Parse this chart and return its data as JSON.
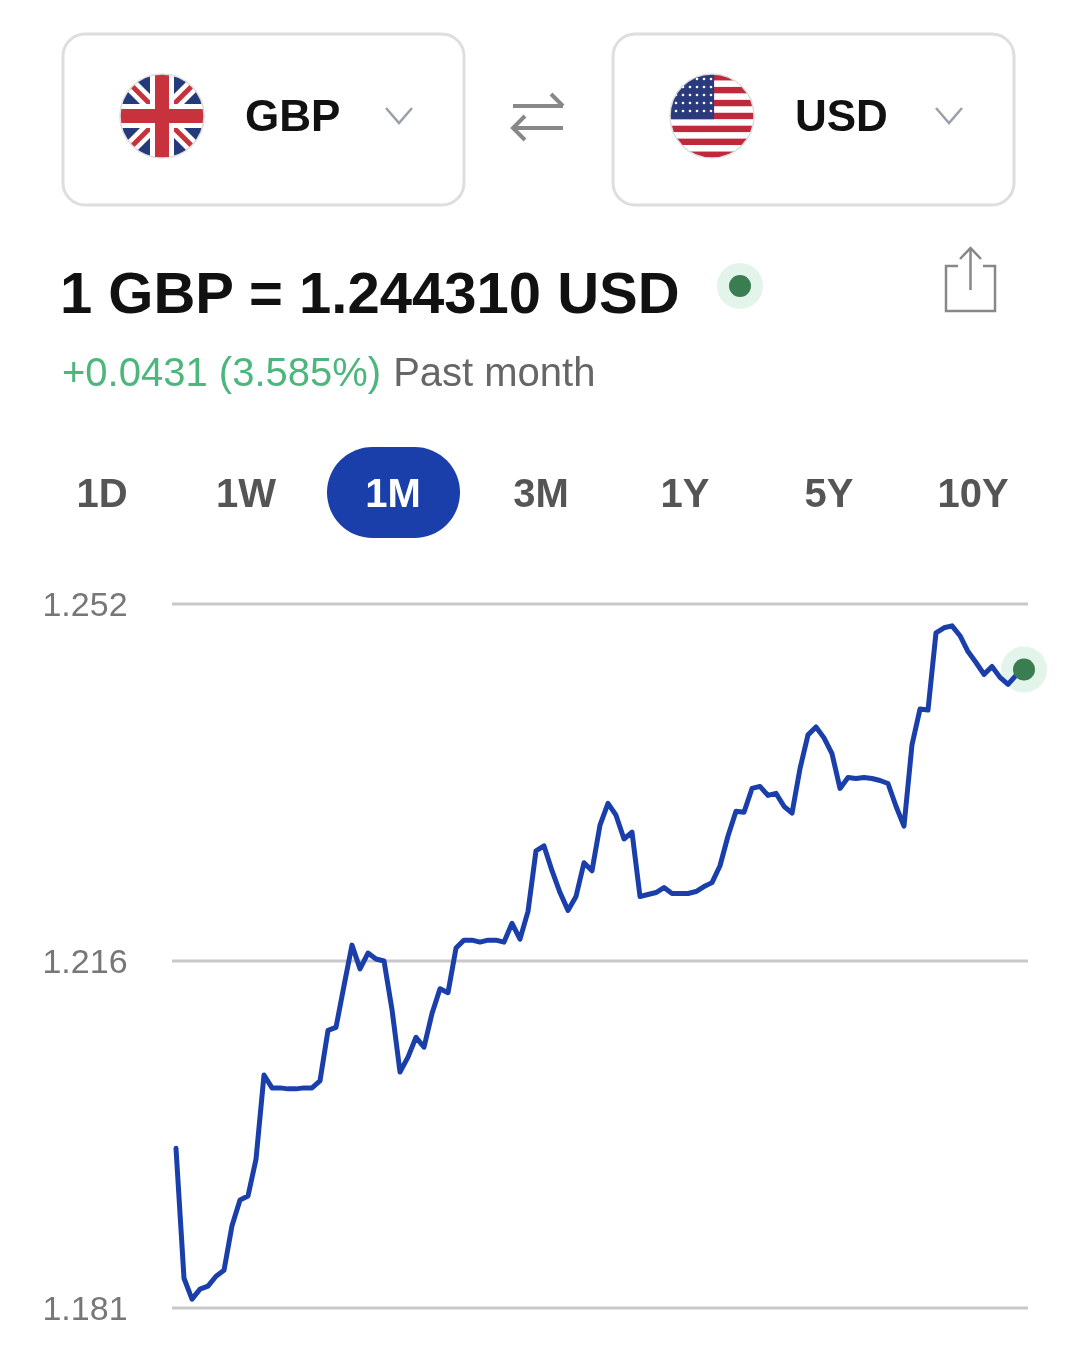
{
  "chart_data": {
    "type": "line",
    "title": "1 GBP = 1.244310 USD",
    "annotations": [
      "GBP",
      "USD",
      "1D",
      "1W",
      "1M",
      "3M",
      "1Y",
      "5Y",
      "10Y",
      "+0.0431 (3.585%)",
      "Past month"
    ],
    "categories": [
      null,
      null,
      null,
      null,
      null,
      null,
      null,
      null,
      null,
      null,
      null,
      null,
      null,
      null,
      null,
      null,
      null,
      null,
      null,
      null,
      null,
      null,
      null,
      null,
      null,
      null,
      null,
      null,
      null,
      null,
      null,
      null,
      null,
      null,
      null,
      null,
      null,
      null,
      null,
      null,
      null,
      null,
      null,
      null,
      null,
      null,
      null,
      null,
      null,
      null,
      null,
      null,
      null,
      null,
      null,
      null,
      null,
      null,
      null,
      null,
      null,
      null,
      null,
      null,
      null,
      null,
      null,
      null,
      null,
      null,
      null,
      null,
      null,
      null,
      null,
      null,
      null,
      null,
      null,
      null,
      null,
      null,
      null,
      null,
      null,
      null,
      null,
      null,
      null,
      null,
      null,
      null,
      null,
      null,
      null,
      null,
      null,
      null,
      null,
      null,
      null,
      null,
      null,
      null,
      null,
      null,
      null
    ],
    "series": [
      {
        "color": "#1b3faa",
        "values": [
          1.1971,
          1.184,
          1.1819,
          1.1829,
          1.1832,
          1.1842,
          1.1848,
          1.1893,
          1.1919,
          1.1923,
          1.196,
          1.2045,
          1.2032,
          1.2032,
          1.2031,
          1.2031,
          1.2032,
          1.2032,
          1.2039,
          1.209,
          1.2093,
          1.2135,
          1.2176,
          1.2152,
          1.2168,
          1.2162,
          1.216,
          1.2111,
          1.2048,
          1.2063,
          1.2083,
          1.2073,
          1.2107,
          1.2132,
          1.2128,
          1.2173,
          1.2181,
          1.2181,
          1.2179,
          1.2181,
          1.2181,
          1.2179,
          1.2198,
          1.2182,
          1.221,
          1.2271,
          1.2276,
          1.2251,
          1.2229,
          1.2211,
          1.2225,
          1.2259,
          1.2251,
          1.2297,
          1.2319,
          1.2307,
          1.2283,
          1.229,
          1.2225,
          1.2227,
          1.2229,
          1.2234,
          1.2228,
          1.2228,
          1.2228,
          1.223,
          1.2235,
          1.2239,
          1.2256,
          1.2286,
          1.2311,
          1.231,
          1.2334,
          1.2336,
          1.2327,
          1.2329,
          1.2316,
          1.2309,
          1.2354,
          1.2388,
          1.2396,
          1.2385,
          1.2369,
          1.2334,
          1.2345,
          1.2344,
          1.2345,
          1.2344,
          1.2342,
          1.2339,
          1.2316,
          1.2296,
          1.2378,
          1.2414,
          1.2413,
          1.2491,
          1.2496,
          1.2498,
          1.2488,
          1.2472,
          1.2461,
          1.2449,
          1.2457,
          1.2446,
          1.2439,
          1.2448,
          1.2454
        ]
      },
      {
        "type": "scatter",
        "color": "#3a7d50",
        "values": [
          null,
          null,
          null,
          null,
          null,
          null,
          null,
          null,
          null,
          null,
          null,
          null,
          null,
          null,
          null,
          null,
          null,
          null,
          null,
          null,
          null,
          null,
          null,
          null,
          null,
          null,
          null,
          null,
          null,
          null,
          null,
          null,
          null,
          null,
          null,
          null,
          null,
          null,
          null,
          null,
          null,
          null,
          null,
          null,
          null,
          null,
          null,
          null,
          null,
          null,
          null,
          null,
          null,
          null,
          null,
          null,
          null,
          null,
          null,
          null,
          null,
          null,
          null,
          null,
          null,
          null,
          null,
          null,
          null,
          null,
          null,
          null,
          null,
          null,
          null,
          null,
          null,
          null,
          null,
          null,
          null,
          null,
          null,
          null,
          null,
          null,
          null,
          null,
          null,
          null,
          null,
          null,
          null,
          null,
          null,
          null,
          null,
          null,
          null,
          null,
          null,
          null,
          null,
          null,
          null,
          null,
          1.2454
        ]
      }
    ],
    "ylim": [
      1.181,
      1.252
    ],
    "yticks": [
      1.252,
      1.216,
      1.181
    ],
    "grid": true
  }
}
